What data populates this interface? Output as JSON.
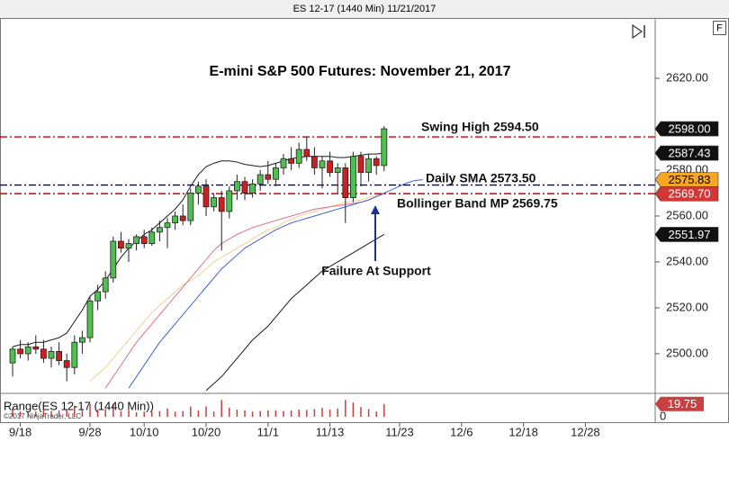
{
  "window_title": "ES 12-17 (1440 Min)  11/21/2017",
  "chart_data": {
    "type": "candlestick",
    "title": "E-mini S&P 500 Futures: November 21, 2017",
    "categories": [
      null,
      "9/18",
      null,
      null,
      null,
      null,
      null,
      null,
      null,
      null,
      "9/28",
      null,
      null,
      null,
      null,
      null,
      null,
      "10/10",
      null,
      null,
      null,
      null,
      null,
      null,
      null,
      "10/20",
      null,
      null,
      null,
      null,
      null,
      null,
      null,
      "11/1",
      null,
      null,
      null,
      null,
      null,
      null,
      null,
      "11/13",
      null,
      null,
      null,
      null,
      null,
      null,
      null,
      null,
      "11/23",
      null,
      null,
      null,
      null,
      null,
      null,
      null,
      "12/6",
      null,
      null,
      null,
      null,
      null,
      null,
      null,
      "12/18",
      null,
      null,
      null,
      null,
      null,
      null,
      null,
      "12/28"
    ],
    "open": [
      2496,
      2502,
      2500,
      2503,
      2502,
      2498,
      2501,
      2497,
      2494,
      2505,
      2507,
      2523,
      2527,
      2533,
      2549,
      2546,
      2548,
      2551,
      2548,
      2553,
      2555,
      2557,
      2560,
      2558,
      2570,
      2573,
      2564,
      2568,
      2562,
      2571,
      2575,
      2570,
      2574,
      2578,
      2576,
      2581,
      2585,
      2583,
      2589,
      2586,
      2581,
      2584,
      2579,
      2581,
      2568,
      2586,
      2579,
      2585,
      2582,
      null,
      null,
      null,
      null,
      null,
      null,
      null,
      null,
      null,
      null,
      null,
      null,
      null,
      null,
      null,
      null,
      null,
      null,
      null,
      null,
      null,
      null,
      null,
      null,
      null,
      null
    ],
    "high": [
      2503,
      2506,
      2505,
      2508,
      2506,
      2503,
      2505,
      2500,
      2508,
      2510,
      2525,
      2530,
      2536,
      2551,
      2553,
      2550,
      2552,
      2554,
      2555,
      2558,
      2559,
      2562,
      2565,
      2572,
      2575,
      2576,
      2570,
      2571,
      2573,
      2578,
      2577,
      2576,
      2580,
      2584,
      2583,
      2587,
      2590,
      2592,
      2594.5,
      2590,
      2586,
      2588,
      2583,
      2583,
      2588,
      2588,
      2587,
      2586,
      2599.25,
      null,
      null,
      null,
      null,
      null,
      null,
      null,
      null,
      null,
      null,
      null,
      null,
      null,
      null,
      null,
      null,
      null,
      null,
      null,
      null,
      null,
      null,
      null,
      null,
      null,
      null
    ],
    "low": [
      2490,
      2498,
      2497,
      2500,
      2496,
      2494,
      2495,
      2488,
      2491,
      2500,
      2505,
      2519,
      2524,
      2531,
      2544,
      2540,
      2545,
      2546,
      2547,
      2549,
      2546,
      2554,
      2556,
      2556,
      2565,
      2560,
      2562,
      2545,
      2559,
      2567,
      2567,
      2568,
      2571,
      2574,
      2573,
      2578,
      2580,
      2581,
      2584,
      2578,
      2572,
      2577,
      2570,
      2557,
      2566,
      2573,
      2575,
      2578,
      2579.5,
      null,
      null,
      null,
      null,
      null,
      null,
      null,
      null,
      null,
      null,
      null,
      null,
      null,
      null,
      null,
      null,
      null,
      null,
      null,
      null,
      null,
      null,
      null,
      null,
      null,
      null
    ],
    "close": [
      2502,
      2500,
      2503,
      2502,
      2498,
      2501,
      2497,
      2494,
      2505,
      2507,
      2523,
      2527,
      2533,
      2549,
      2546,
      2548,
      2551,
      2548,
      2553,
      2555,
      2557,
      2560,
      2558,
      2570,
      2573,
      2564,
      2568,
      2562,
      2571,
      2575,
      2570,
      2574,
      2578,
      2576,
      2581,
      2585,
      2583,
      2589,
      2586,
      2581,
      2584,
      2579,
      2581,
      2568,
      2586,
      2579,
      2585,
      2582,
      2598,
      null,
      null,
      null,
      null,
      null,
      null,
      null,
      null,
      null,
      null,
      null,
      null,
      null,
      null,
      null,
      null,
      null,
      null,
      null,
      null,
      null,
      null,
      null,
      null,
      null,
      null
    ],
    "up_color": "#4fc04f",
    "down_color": "#cc2020",
    "lines": [
      {
        "color": "#1a1a1a",
        "values": [
          2503,
          2504,
          2504,
          2505,
          2505,
          2506,
          2507,
          2509,
          2514,
          2519,
          2525,
          2528,
          2532,
          2537,
          2542,
          2546,
          2549,
          2552,
          2554,
          2557,
          2560,
          2563,
          2567,
          2573,
          2578,
          2581.5,
          2583,
          2584,
          2584,
          2583.5,
          2582.5,
          2582,
          2581.5,
          2582,
          2583,
          2584,
          2585,
          2585.5,
          2586,
          2586,
          2586,
          2586,
          2585.5,
          2585.5,
          2586,
          2586.5,
          2587,
          2587,
          2587.43,
          null,
          null,
          null,
          null,
          null,
          null,
          null,
          null,
          null,
          null,
          null,
          null,
          null,
          null,
          null,
          null,
          null,
          null,
          null,
          null,
          null,
          null,
          null,
          null,
          null,
          null
        ]
      },
      {
        "color": "#1a1a1a",
        "values": [
          null,
          null,
          null,
          null,
          null,
          null,
          null,
          null,
          null,
          null,
          null,
          null,
          null,
          null,
          null,
          null,
          null,
          null,
          null,
          null,
          null,
          null,
          null,
          null,
          null,
          2484,
          2487,
          2490,
          2494,
          2498,
          2502,
          2506,
          2509,
          2512,
          2516,
          2520,
          2524,
          2527,
          2530,
          2533,
          2536,
          2538,
          2540,
          2542,
          2544,
          2546,
          2548,
          2550,
          2551.97,
          null,
          null,
          null,
          null,
          null,
          null,
          null,
          null,
          null,
          null,
          null,
          null,
          null,
          null,
          null,
          null,
          null,
          null,
          null,
          null,
          null,
          null,
          null,
          null,
          null,
          null
        ]
      },
      {
        "color": "#f0d090",
        "values": [
          null,
          null,
          null,
          null,
          null,
          null,
          null,
          null,
          null,
          null,
          2488,
          2491,
          2494,
          2498,
          2502,
          2506,
          2510,
          2514,
          2518,
          2521,
          2524,
          2527,
          2530,
          2532,
          2534,
          2537,
          2540,
          2542,
          2544,
          2546,
          2548,
          2550,
          2552,
          2554,
          2555,
          2557,
          2558.5,
          2560,
          2561,
          2562,
          2563,
          2564,
          2565,
          2566,
          2566.5,
          2567,
          2568,
          2569,
          2570,
          null,
          null,
          null,
          null,
          null,
          null,
          null,
          null,
          null,
          null,
          null,
          null,
          null,
          null,
          null,
          null,
          null,
          null,
          null,
          null,
          null,
          null,
          null,
          null,
          null,
          null
        ]
      },
      {
        "color": "#e07090",
        "values": [
          null,
          null,
          null,
          null,
          null,
          null,
          null,
          null,
          null,
          null,
          null,
          null,
          2485,
          2490,
          2495,
          2500,
          2505,
          2509,
          2513,
          2517,
          2521,
          2525,
          2529,
          2533,
          2537,
          2541,
          2545,
          2548,
          2550,
          2552,
          2553.5,
          2555,
          2556,
          2557,
          2558,
          2559,
          2560,
          2561,
          2562,
          2563,
          2563.5,
          2564,
          2564.5,
          2565,
          2565.5,
          2566,
          2567,
          2568.5,
          2569.7,
          null,
          null,
          null,
          null,
          null,
          null,
          null,
          null,
          null,
          null,
          null,
          null,
          null,
          null,
          null,
          null,
          null,
          null,
          null,
          null,
          null,
          null,
          null,
          null,
          null,
          null
        ]
      },
      {
        "color": "#4060e0",
        "values": [
          null,
          null,
          null,
          null,
          null,
          null,
          null,
          null,
          null,
          null,
          null,
          null,
          null,
          null,
          null,
          2485,
          2490,
          2495,
          2500,
          2505,
          2509,
          2513,
          2517,
          2521,
          2525,
          2529,
          2533,
          2537,
          2540,
          2543,
          2546,
          2548,
          2550,
          2552,
          2554,
          2555.5,
          2557,
          2558,
          2559,
          2560,
          2561,
          2562,
          2563,
          2564,
          2565,
          2566,
          2567,
          2568.5,
          2570,
          2571.5,
          2573,
          2574.5,
          2575.5,
          2575.83,
          null,
          null,
          null,
          null,
          null,
          null,
          null,
          null,
          null,
          null,
          null,
          null,
          null,
          null,
          null,
          null,
          null,
          null,
          null,
          null,
          null
        ]
      }
    ],
    "ylim": [
      2483.5,
      2645.5
    ],
    "yticks": [
      {
        "value": 2500,
        "label": "2500.00"
      },
      {
        "value": 2520,
        "label": "2520.00"
      },
      {
        "value": 2540,
        "label": "2540.00"
      },
      {
        "value": 2560,
        "label": "2560.00"
      },
      {
        "value": 2580,
        "label": "2580.00"
      },
      {
        "value": 2620,
        "label": "2620.00"
      }
    ],
    "levels": [
      {
        "value": 2594.5,
        "label": "Swing High 2594.50",
        "color": "#cc0000"
      },
      {
        "value": 2573.5,
        "label": "Daily SMA 2573.50",
        "color": "#000080"
      },
      {
        "value": 2569.75,
        "label": "Bollinger Band MP 2569.75",
        "color": "#cc0000"
      }
    ],
    "price_badges": [
      {
        "value": 2598,
        "label": "2598.00",
        "color": "#111111",
        "text_color": "#ffffff"
      },
      {
        "value": 2587.43,
        "label": "2587.43",
        "color": "#111111",
        "text_color": "#ffffff"
      },
      {
        "value": 2575.83,
        "label": "2575.83",
        "color": "#f5a623",
        "text_color": "#000000"
      },
      {
        "value": 2569.7,
        "label": "2569.70",
        "color": "#d03838",
        "text_color": "#ffffff"
      },
      {
        "value": 2551.97,
        "label": "2551.97",
        "color": "#111111",
        "text_color": "#ffffff"
      }
    ],
    "annotation": "Failure At Support",
    "range_panel": {
      "title": "Range(ES 12-17 (1440 Min))",
      "color": "#c84040",
      "values": [
        13,
        8,
        8,
        8,
        10,
        9,
        10,
        12,
        17,
        10,
        20,
        11,
        12,
        20,
        9,
        10,
        7,
        8,
        8,
        9,
        13,
        8,
        9,
        16,
        10,
        16,
        8,
        26,
        14,
        11,
        10,
        8,
        9,
        10,
        10,
        9,
        10,
        11,
        10.5,
        12,
        14,
        11,
        13,
        26,
        22,
        15,
        12,
        8,
        19.75,
        null,
        null,
        null,
        null,
        null,
        null,
        null,
        null,
        null,
        null,
        null,
        null,
        null,
        null,
        null,
        null,
        null,
        null,
        null,
        null,
        null,
        null,
        null,
        null,
        null,
        null
      ],
      "ylim": [
        0,
        32
      ],
      "yticks": [
        0
      ]
    },
    "copyright": "©2017 NinjaTrader, LLC"
  }
}
